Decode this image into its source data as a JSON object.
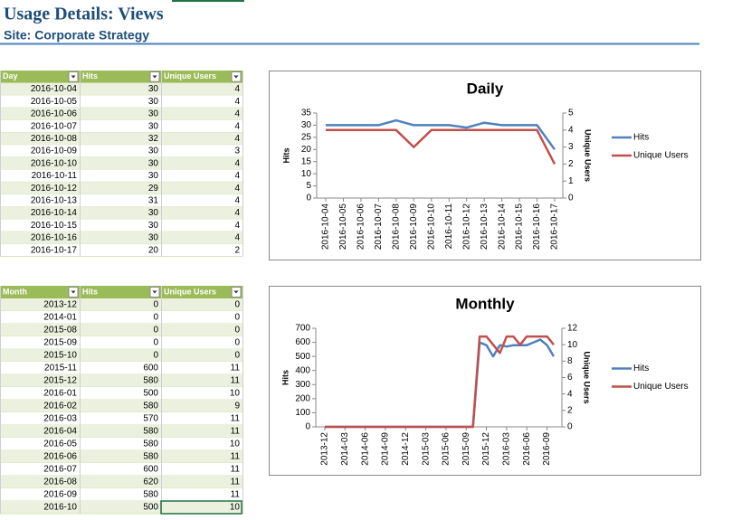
{
  "header": {
    "title": "Usage Details: Views",
    "subtitle": "Site: Corporate Strategy"
  },
  "tables": [
    {
      "columns": [
        "Day",
        "Hits",
        "Unique Users"
      ],
      "rows": [
        [
          "2016-10-04",
          30,
          4
        ],
        [
          "2016-10-05",
          30,
          4
        ],
        [
          "2016-10-06",
          30,
          4
        ],
        [
          "2016-10-07",
          30,
          4
        ],
        [
          "2016-10-08",
          32,
          4
        ],
        [
          "2016-10-09",
          30,
          3
        ],
        [
          "2016-10-10",
          30,
          4
        ],
        [
          "2016-10-11",
          30,
          4
        ],
        [
          "2016-10-12",
          29,
          4
        ],
        [
          "2016-10-13",
          31,
          4
        ],
        [
          "2016-10-14",
          30,
          4
        ],
        [
          "2016-10-15",
          30,
          4
        ],
        [
          "2016-10-16",
          30,
          4
        ],
        [
          "2016-10-17",
          20,
          2
        ]
      ]
    },
    {
      "columns": [
        "Month",
        "Hits",
        "Unique Users"
      ],
      "rows": [
        [
          "2013-12",
          0,
          0
        ],
        [
          "2014-01",
          0,
          0
        ],
        [
          "2015-08",
          0,
          0
        ],
        [
          "2015-09",
          0,
          0
        ],
        [
          "2015-10",
          0,
          0
        ],
        [
          "2015-11",
          600,
          11
        ],
        [
          "2015-12",
          580,
          11
        ],
        [
          "2016-01",
          500,
          10
        ],
        [
          "2016-02",
          580,
          9
        ],
        [
          "2016-03",
          570,
          11
        ],
        [
          "2016-04",
          580,
          11
        ],
        [
          "2016-05",
          580,
          10
        ],
        [
          "2016-06",
          580,
          11
        ],
        [
          "2016-07",
          600,
          11
        ],
        [
          "2016-08",
          620,
          11
        ],
        [
          "2016-09",
          580,
          11
        ],
        [
          "2016-10",
          500,
          10
        ]
      ]
    }
  ],
  "chart_data": [
    {
      "type": "line",
      "title": "Daily",
      "y_label": "Hits",
      "y2_label": "Unique Users",
      "categories": [
        "2016-10-04",
        "2016-10-05",
        "2016-10-06",
        "2016-10-07",
        "2016-10-08",
        "2016-10-09",
        "2016-10-10",
        "2016-10-11",
        "2016-10-12",
        "2016-10-13",
        "2016-10-14",
        "2016-10-15",
        "2016-10-16",
        "2016-10-17"
      ],
      "series": [
        {
          "name": "Hits",
          "color": "#4f81bd",
          "values": [
            30,
            30,
            30,
            30,
            32,
            30,
            30,
            30,
            29,
            31,
            30,
            30,
            30,
            20
          ]
        },
        {
          "name": "Unique Users",
          "color": "#c0504d",
          "axis": "y2",
          "values": [
            4,
            4,
            4,
            4,
            4,
            3,
            4,
            4,
            4,
            4,
            4,
            4,
            4,
            2
          ]
        }
      ],
      "ylim": [
        0,
        35
      ],
      "yticks": [
        0,
        5,
        10,
        15,
        20,
        25,
        30,
        35
      ],
      "y2lim": [
        0,
        5
      ],
      "y2ticks": [
        0,
        1,
        2,
        3,
        4,
        5
      ],
      "legend": "right"
    },
    {
      "type": "line",
      "title": "Monthly",
      "y_label": "Hits",
      "y2_label": "Unique Users",
      "x": [
        "2013-12",
        "2014-01",
        "2015-08",
        "2015-09",
        "2015-10",
        "2015-11",
        "2015-12",
        "2016-01",
        "2016-02",
        "2016-03",
        "2016-04",
        "2016-05",
        "2016-06",
        "2016-07",
        "2016-08",
        "2016-09",
        "2016-10"
      ],
      "xlim": [
        "2013-12",
        "2016-10"
      ],
      "xticks": [
        "2013-12",
        "2014-03",
        "2014-06",
        "2014-09",
        "2014-12",
        "2015-03",
        "2015-06",
        "2015-09",
        "2015-12",
        "2016-03",
        "2016-06",
        "2016-09"
      ],
      "series": [
        {
          "name": "Hits",
          "color": "#4f81bd",
          "values": [
            0,
            0,
            0,
            0,
            0,
            600,
            580,
            500,
            580,
            570,
            580,
            580,
            580,
            600,
            620,
            580,
            500
          ]
        },
        {
          "name": "Unique Users",
          "color": "#c0504d",
          "axis": "y2",
          "values": [
            0,
            0,
            0,
            0,
            0,
            11,
            11,
            10,
            9,
            11,
            11,
            10,
            11,
            11,
            11,
            11,
            10
          ]
        }
      ],
      "ylim": [
        0,
        700
      ],
      "yticks": [
        0,
        100,
        200,
        300,
        400,
        500,
        600,
        700
      ],
      "y2lim": [
        0,
        12
      ],
      "y2ticks": [
        0,
        2,
        4,
        6,
        8,
        10,
        12
      ],
      "legend": "right"
    }
  ]
}
